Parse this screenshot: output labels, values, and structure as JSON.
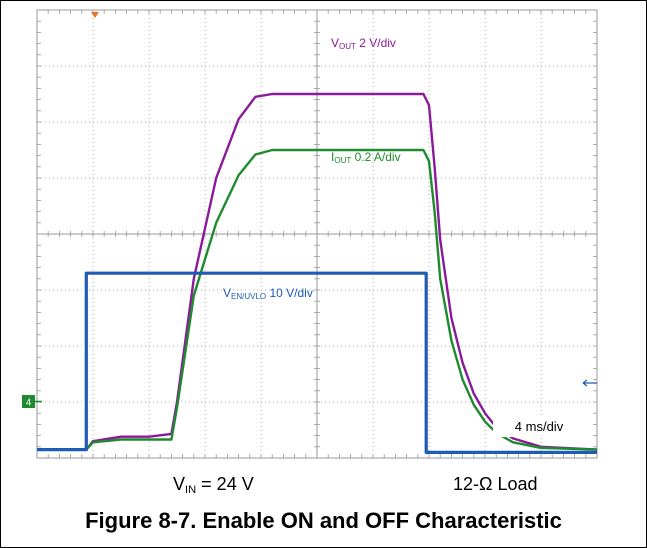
{
  "chart_data": {
    "type": "line",
    "instrument": "oscilloscope",
    "divisions": {
      "x": 10,
      "y": 8
    },
    "timebase": "4 ms/div",
    "x_units": "div",
    "y_units": "div",
    "series": [
      {
        "name": "VOUT 2 V/div",
        "label_main": "V",
        "label_sub": "OUT",
        "label_scale": " 2 V/div",
        "color": "#8b1a9b",
        "x": [
          0,
          0.88,
          1.0,
          1.5,
          2.0,
          2.4,
          2.5,
          2.8,
          3.2,
          3.6,
          3.9,
          4.2,
          6.9,
          7.0,
          7.1,
          7.2,
          7.4,
          7.6,
          7.8,
          8.0,
          8.2,
          8.5,
          9.0,
          10.0
        ],
        "y": [
          0.15,
          0.15,
          0.3,
          0.38,
          0.38,
          0.43,
          1.0,
          3.2,
          5.0,
          6.05,
          6.45,
          6.5,
          6.5,
          6.3,
          5.2,
          3.9,
          2.5,
          1.7,
          1.15,
          0.8,
          0.55,
          0.35,
          0.2,
          0.15
        ]
      },
      {
        "name": "IOUT 0.2 A/div",
        "label_main": "I",
        "label_sub": "OUT",
        "label_scale": " 0.2 A/div",
        "color": "#1f8a2e",
        "x": [
          0,
          0.88,
          1.0,
          1.5,
          2.0,
          2.4,
          2.5,
          2.8,
          3.2,
          3.6,
          3.9,
          4.2,
          6.9,
          7.0,
          7.1,
          7.2,
          7.4,
          7.6,
          7.8,
          8.0,
          8.2,
          8.5,
          9.0,
          10.0
        ],
        "y": [
          0.15,
          0.15,
          0.28,
          0.33,
          0.33,
          0.33,
          0.9,
          2.9,
          4.2,
          5.05,
          5.42,
          5.5,
          5.5,
          5.3,
          4.4,
          3.2,
          2.1,
          1.4,
          0.95,
          0.65,
          0.45,
          0.28,
          0.18,
          0.15
        ]
      },
      {
        "name": "VEN/UVLO 10 V/div",
        "label_main": "V",
        "label_sub": "EN/UVLO",
        "label_scale": " 10 V/div",
        "color": "#1f5bb5",
        "x": [
          0,
          0.88,
          0.88,
          6.95,
          6.95,
          10.0
        ],
        "y": [
          0.15,
          0.15,
          3.3,
          3.3,
          0.1,
          0.1
        ]
      }
    ],
    "annotations": {
      "channel_marker": "4",
      "timebase_label": "4 ms/div",
      "conditions_left": "V",
      "conditions_left_sub": "IN",
      "conditions_left_rest": " = 24 V",
      "conditions_right": "12-Ω Load"
    }
  },
  "caption": "Figure 8-7. Enable ON and OFF Characteristic"
}
